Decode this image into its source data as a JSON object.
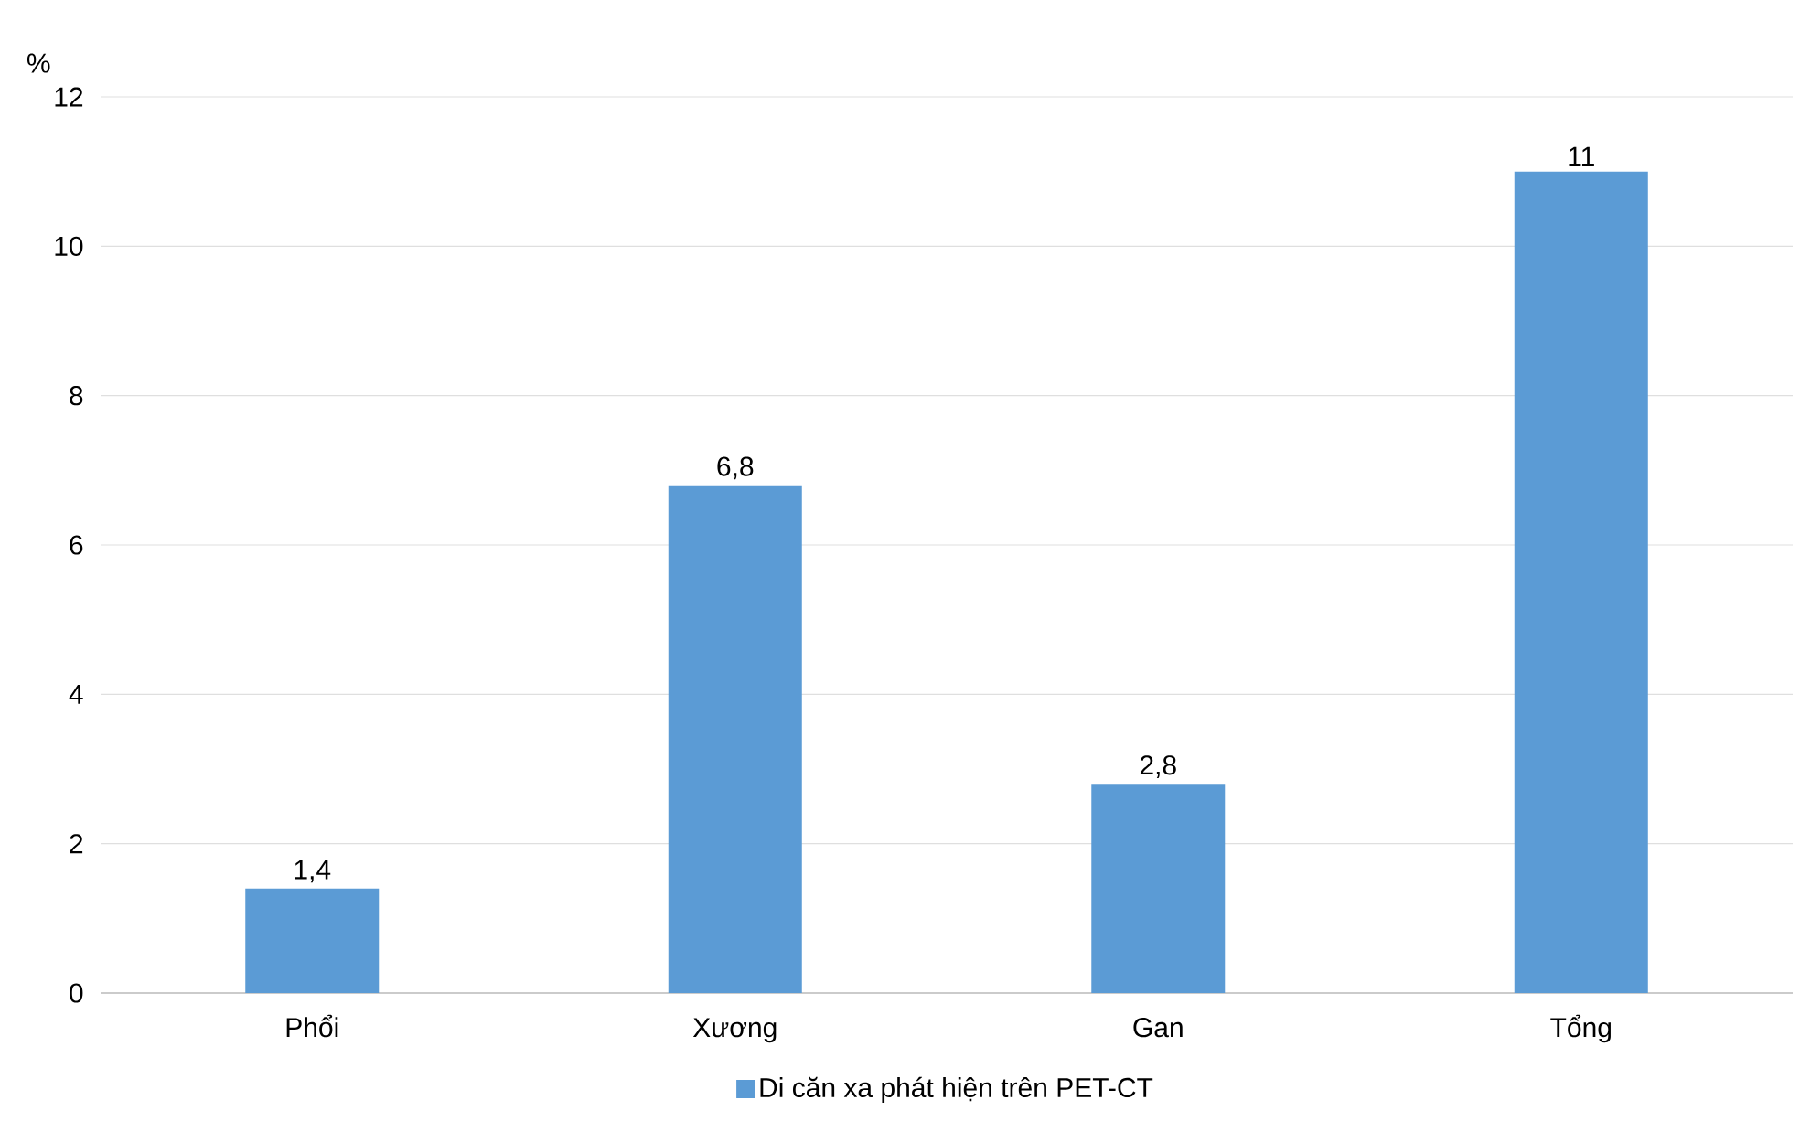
{
  "chart_data": {
    "type": "bar",
    "ylabel": "%",
    "categories": [
      "Phổi",
      "Xương",
      "Gan",
      "Tổng"
    ],
    "series": [
      {
        "name": "Di căn xa phát hiện trên PET-CT",
        "color": "#5b9bd5",
        "values": [
          1.4,
          6.8,
          2.8,
          11
        ],
        "value_labels": [
          "1,4",
          "6,8",
          "2,8",
          "11"
        ]
      }
    ],
    "ylim": [
      0,
      12
    ],
    "yticks": [
      0,
      2,
      4,
      6,
      8,
      10,
      12
    ],
    "grid": "y",
    "legend": "bottom"
  }
}
